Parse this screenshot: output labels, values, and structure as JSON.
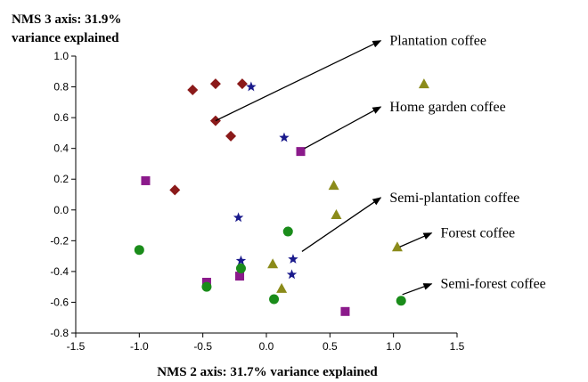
{
  "chart_data": {
    "type": "scatter",
    "title": "",
    "xlabel": "NMS 2 axis: 31.7% variance explained",
    "ylabel_lines": [
      "NMS 3 axis: 31.9%",
      "variance explained"
    ],
    "xlim": [
      -1.5,
      1.5
    ],
    "ylim": [
      -0.8,
      1.0
    ],
    "xticks": [
      "-1.5",
      "-1.0",
      "-0.5",
      "0.0",
      "0.5",
      "1.0",
      "1.5"
    ],
    "yticks": [
      "1.0",
      "0.8",
      "0.6",
      "0.4",
      "0.2",
      "0.0",
      "-0.2",
      "-0.4",
      "-0.6",
      "-0.8"
    ],
    "grid": false,
    "series": [
      {
        "marker": "diamond",
        "color": "#8b1a1a",
        "points": [
          [
            -0.58,
            0.78
          ],
          [
            -0.4,
            0.82
          ],
          [
            -0.19,
            0.82
          ],
          [
            -0.4,
            0.58
          ],
          [
            -0.28,
            0.48
          ],
          [
            -0.72,
            0.13
          ]
        ]
      },
      {
        "marker": "star",
        "color": "#1a1a8c",
        "points": [
          [
            -0.12,
            0.8
          ],
          [
            0.14,
            0.47
          ],
          [
            -0.22,
            -0.05
          ],
          [
            0.17,
            -0.14
          ],
          [
            -0.2,
            -0.33
          ],
          [
            0.21,
            -0.32
          ],
          [
            0.2,
            -0.42
          ]
        ]
      },
      {
        "marker": "square",
        "color": "#8b1a8b",
        "points": [
          [
            0.27,
            0.38
          ],
          [
            -0.95,
            0.19
          ],
          [
            -0.47,
            -0.47
          ],
          [
            -0.21,
            -0.43
          ],
          [
            0.62,
            -0.66
          ]
        ]
      },
      {
        "marker": "triangle",
        "color": "#8b8b1a",
        "points": [
          [
            1.24,
            0.82
          ],
          [
            0.53,
            0.16
          ],
          [
            0.55,
            -0.03
          ],
          [
            1.03,
            -0.24
          ],
          [
            0.05,
            -0.35
          ],
          [
            0.12,
            -0.51
          ]
        ]
      },
      {
        "marker": "circle",
        "color": "#1a8c1a",
        "points": [
          [
            -1.0,
            -0.26
          ],
          [
            0.17,
            -0.14
          ],
          [
            -0.2,
            -0.38
          ],
          [
            -0.47,
            -0.5
          ],
          [
            0.06,
            -0.58
          ],
          [
            1.06,
            -0.59
          ]
        ]
      }
    ],
    "annotations": [
      {
        "text": "Plantation coffee",
        "from": [
          -0.4,
          0.58
        ],
        "to": [
          0.9,
          1.1
        ]
      },
      {
        "text": "Home garden coffee",
        "from": [
          0.3,
          0.4
        ],
        "to": [
          0.9,
          0.67
        ]
      },
      {
        "text": "Semi-plantation coffee",
        "from": [
          0.28,
          -0.27
        ],
        "to": [
          0.9,
          0.08
        ]
      },
      {
        "text": "Forest coffee",
        "from": [
          1.05,
          -0.24
        ],
        "to": [
          1.3,
          -0.15
        ]
      },
      {
        "text": "Semi-forest coffee",
        "from": [
          1.07,
          -0.55
        ],
        "to": [
          1.3,
          -0.48
        ]
      }
    ]
  }
}
